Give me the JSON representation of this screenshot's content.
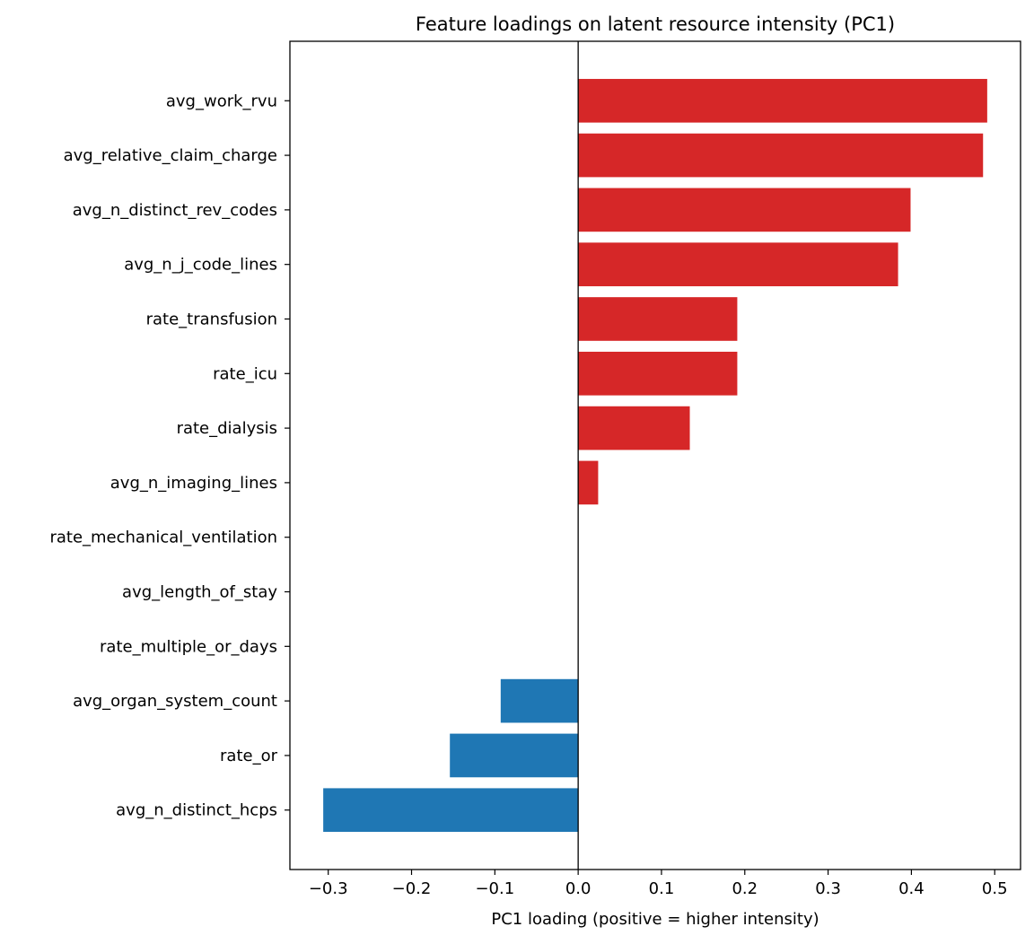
{
  "chart_data": {
    "type": "bar",
    "orientation": "horizontal",
    "title": "Feature loadings on latent resource intensity (PC1)",
    "xlabel": "PC1 loading (positive = higher intensity)",
    "ylabel": "",
    "xlim": [
      -0.346,
      0.531
    ],
    "xticks": [
      -0.3,
      -0.2,
      -0.1,
      0.0,
      0.1,
      0.2,
      0.3,
      0.4,
      0.5
    ],
    "xtick_labels": [
      "−0.3",
      "−0.2",
      "−0.1",
      "0.0",
      "0.1",
      "0.2",
      "0.3",
      "0.4",
      "0.5"
    ],
    "grid": false,
    "categories": [
      "avg_work_rvu",
      "avg_relative_claim_charge",
      "avg_n_distinct_rev_codes",
      "avg_n_j_code_lines",
      "rate_transfusion",
      "rate_icu",
      "rate_dialysis",
      "avg_n_imaging_lines",
      "rate_mechanical_ventilation",
      "avg_length_of_stay",
      "rate_multiple_or_days",
      "avg_organ_system_count",
      "rate_or",
      "avg_n_distinct_hcps"
    ],
    "values": [
      0.491,
      0.486,
      0.399,
      0.384,
      0.191,
      0.191,
      0.134,
      0.024,
      0.0,
      0.0,
      0.0,
      -0.093,
      -0.154,
      -0.306
    ],
    "colors": {
      "positive": "#d62728",
      "negative": "#1f77b4"
    }
  }
}
